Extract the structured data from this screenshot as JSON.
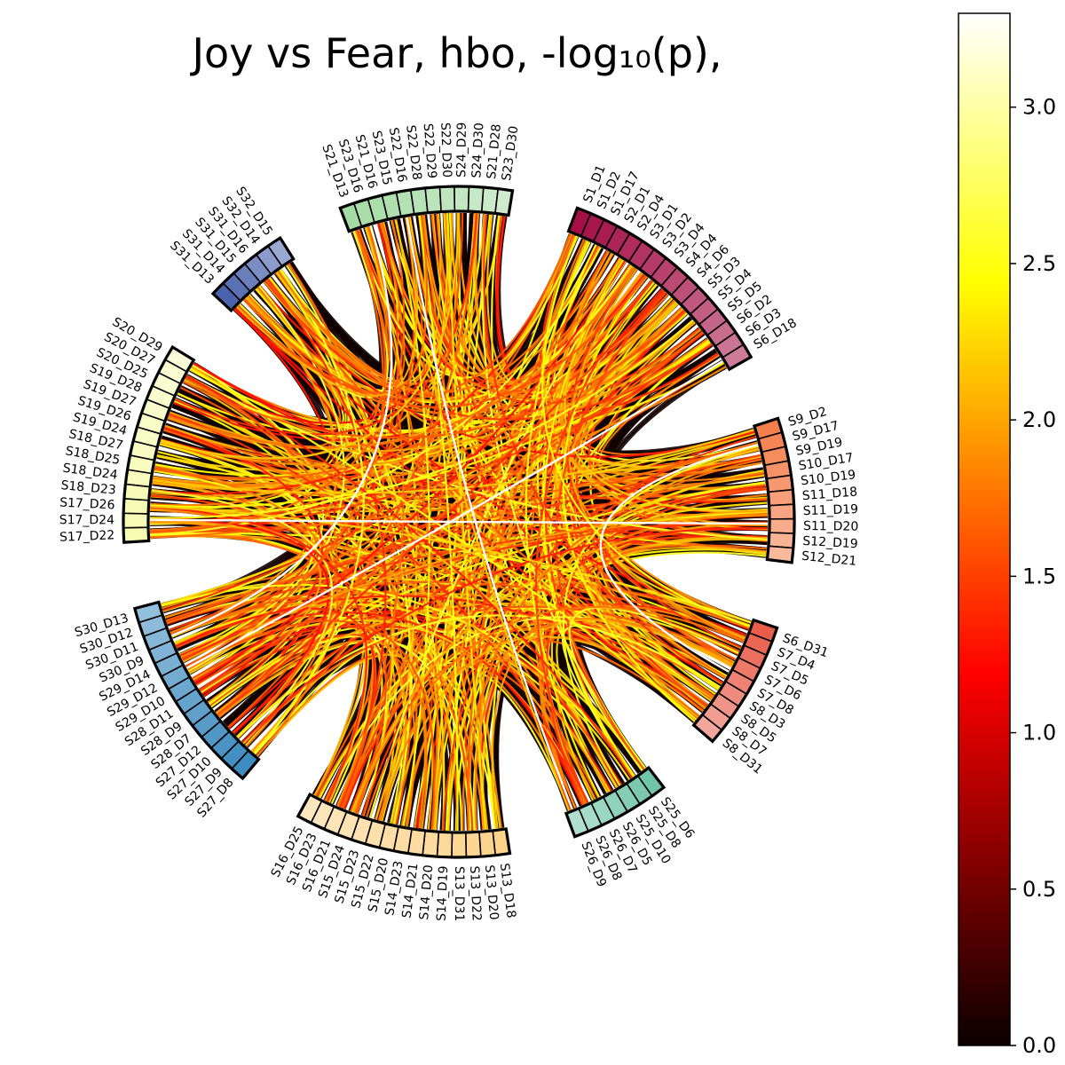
{
  "chart_data": {
    "type": "chord",
    "title": "Joy vs Fear, hbo, -log₁₀(p),",
    "colorbar": {
      "colormap": "hot",
      "range": [
        0.0,
        3.3
      ],
      "ticks": [
        {
          "value": 0.0,
          "label": "0.0"
        },
        {
          "value": 0.5,
          "label": "0.5"
        },
        {
          "value": 1.0,
          "label": "1.0"
        },
        {
          "value": 1.5,
          "label": "1.5"
        },
        {
          "value": 2.0,
          "label": "2.0"
        },
        {
          "value": 2.5,
          "label": "2.5"
        },
        {
          "value": 3.0,
          "label": "3.0"
        }
      ]
    },
    "groups": [
      {
        "color": "#a50f46",
        "nodes": [
          "S1_D1",
          "S1_D2",
          "S1_D17",
          "S2_D1",
          "S2_D4",
          "S3_D1",
          "S3_D2",
          "S3_D4",
          "S4_D4",
          "S4_D6",
          "S5_D3",
          "S5_D4",
          "S5_D5",
          "S6_D2",
          "S6_D3",
          "S6_D18"
        ]
      },
      {
        "color": "#f47f4c",
        "nodes": [
          "S9_D2",
          "S9_D17",
          "S9_D19",
          "S10_D17",
          "S10_D19",
          "S11_D18",
          "S11_D19",
          "S11_D20",
          "S12_D19",
          "S12_D21"
        ]
      },
      {
        "color": "#e95e4b",
        "nodes": [
          "S6_D31",
          "S7_D4",
          "S7_D5",
          "S7_D6",
          "S7_D8",
          "S8_D3",
          "S8_D5",
          "S8_D7",
          "S8_D31"
        ]
      },
      {
        "color": "#70c4a8",
        "nodes": [
          "S25_D6",
          "S25_D8",
          "S25_D10",
          "S26_D5",
          "S26_D7",
          "S26_D8",
          "S26_D9"
        ]
      },
      {
        "color": "#fdd38a",
        "nodes": [
          "S13_D18",
          "S13_D20",
          "S13_D22",
          "S13_D31",
          "S14_D19",
          "S14_D20",
          "S14_D21",
          "S14_D23",
          "S15_D20",
          "S15_D22",
          "S15_D23",
          "S15_D24",
          "S16_D21",
          "S16_D23",
          "S16_D25"
        ]
      },
      {
        "color": "#3d8bbf",
        "nodes": [
          "S27_D8",
          "S27_D9",
          "S27_D10",
          "S27_D12",
          "S28_D7",
          "S28_D9",
          "S28_D11",
          "S29_D10",
          "S29_D12",
          "S29_D14",
          "S30_D9",
          "S30_D11",
          "S30_D12",
          "S30_D13"
        ]
      },
      {
        "color": "#f6fbb2",
        "nodes": [
          "S17_D22",
          "S17_D24",
          "S17_D26",
          "S18_D23",
          "S18_D24",
          "S18_D25",
          "S18_D27",
          "S19_D24",
          "S19_D26",
          "S19_D27",
          "S19_D28",
          "S20_D25",
          "S20_D27",
          "S20_D29"
        ]
      },
      {
        "color": "#4a63ad",
        "nodes": [
          "S31_D13",
          "S31_D14",
          "S31_D15",
          "S31_D16",
          "S32_D14",
          "S32_D15"
        ]
      },
      {
        "color": "#a5dba4",
        "nodes": [
          "S21_D13",
          "S23_D16",
          "S21_D16",
          "S23_D15",
          "S22_D16",
          "S22_D28",
          "S22_D29",
          "S22_D30",
          "S24_D29",
          "S24_D30",
          "S21_D28",
          "S23_D30"
        ]
      }
    ]
  }
}
